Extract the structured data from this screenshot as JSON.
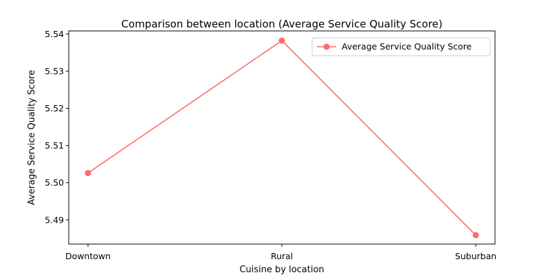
{
  "chart_data": {
    "type": "line",
    "title": "Comparison between location (Average Service Quality Score)",
    "xlabel": "Cuisine by location",
    "ylabel": "Average Service Quality Score",
    "categories": [
      "Downtown",
      "Rural",
      "Suburban"
    ],
    "series": [
      {
        "name": "Average Service Quality Score",
        "values": [
          5.5026,
          5.5382,
          5.4859
        ],
        "color": "#ff6b6b"
      }
    ],
    "ylim": [
      5.4835,
      5.5408
    ],
    "yticks": [
      "5.49",
      "5.50",
      "5.51",
      "5.52",
      "5.53",
      "5.54"
    ],
    "ytick_values": [
      5.49,
      5.5,
      5.51,
      5.52,
      5.53,
      5.54
    ],
    "grid": false,
    "legend_position": "upper-right"
  }
}
